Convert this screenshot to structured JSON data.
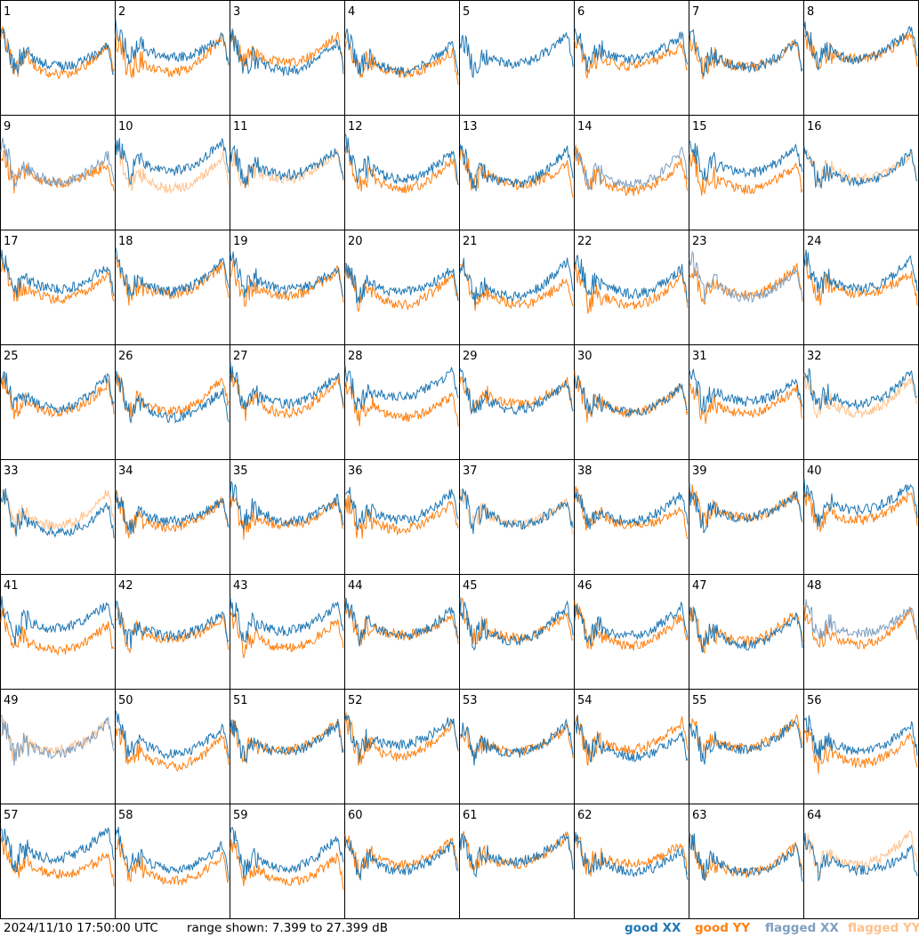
{
  "chart_data": {
    "type": "line",
    "layout": "small-multiples",
    "rows": 8,
    "cols": 8,
    "panel_labels": [
      "1",
      "2",
      "3",
      "4",
      "5",
      "6",
      "7",
      "8",
      "9",
      "10",
      "11",
      "12",
      "13",
      "14",
      "15",
      "16",
      "17",
      "18",
      "19",
      "20",
      "21",
      "22",
      "23",
      "24",
      "25",
      "26",
      "27",
      "28",
      "29",
      "30",
      "31",
      "32",
      "33",
      "34",
      "35",
      "36",
      "37",
      "38",
      "39",
      "40",
      "41",
      "42",
      "43",
      "44",
      "45",
      "46",
      "47",
      "48",
      "49",
      "50",
      "51",
      "52",
      "53",
      "54",
      "55",
      "56",
      "57",
      "58",
      "59",
      "60",
      "61",
      "62",
      "63",
      "64"
    ],
    "y_range_db": [
      7.399,
      27.399
    ],
    "legend": [
      {
        "label": "good XX",
        "color": "#1f77b4"
      },
      {
        "label": "good YY",
        "color": "#ff7f0e"
      },
      {
        "label": "flagged XX",
        "color": "#7f9fbf"
      },
      {
        "label": "flagged YY",
        "color": "#ffc08a"
      }
    ],
    "flags": {
      "1": [
        "good",
        "good"
      ],
      "2": [
        "good",
        "good"
      ],
      "3": [
        "good",
        "good"
      ],
      "4": [
        "good",
        "good"
      ],
      "5": [
        "good",
        "none"
      ],
      "6": [
        "good",
        "good"
      ],
      "7": [
        "good",
        "good"
      ],
      "8": [
        "good",
        "good"
      ],
      "9": [
        "flagged",
        "good"
      ],
      "10": [
        "good",
        "flagged"
      ],
      "11": [
        "good",
        "flagged"
      ],
      "12": [
        "good",
        "good"
      ],
      "13": [
        "good",
        "good"
      ],
      "14": [
        "flagged",
        "good"
      ],
      "15": [
        "good",
        "good"
      ],
      "16": [
        "good",
        "flagged"
      ],
      "17": [
        "good",
        "good"
      ],
      "18": [
        "good",
        "good"
      ],
      "19": [
        "good",
        "good"
      ],
      "20": [
        "good",
        "good"
      ],
      "21": [
        "good",
        "good"
      ],
      "22": [
        "good",
        "good"
      ],
      "23": [
        "flagged",
        "good"
      ],
      "24": [
        "good",
        "good"
      ],
      "25": [
        "good",
        "good"
      ],
      "26": [
        "good",
        "good"
      ],
      "27": [
        "good",
        "good"
      ],
      "28": [
        "good",
        "good"
      ],
      "29": [
        "good",
        "good"
      ],
      "30": [
        "good",
        "good"
      ],
      "31": [
        "good",
        "good"
      ],
      "32": [
        "good",
        "flagged"
      ],
      "33": [
        "good",
        "flagged"
      ],
      "34": [
        "good",
        "good"
      ],
      "35": [
        "good",
        "good"
      ],
      "36": [
        "good",
        "good"
      ],
      "37": [
        "good",
        "flagged"
      ],
      "38": [
        "good",
        "good"
      ],
      "39": [
        "good",
        "good"
      ],
      "40": [
        "good",
        "good"
      ],
      "41": [
        "good",
        "good"
      ],
      "42": [
        "good",
        "good"
      ],
      "43": [
        "good",
        "good"
      ],
      "44": [
        "good",
        "good"
      ],
      "45": [
        "good",
        "good"
      ],
      "46": [
        "good",
        "good"
      ],
      "47": [
        "good",
        "good"
      ],
      "48": [
        "flagged",
        "good"
      ],
      "49": [
        "flagged",
        "flagged"
      ],
      "50": [
        "good",
        "good"
      ],
      "51": [
        "good",
        "good"
      ],
      "52": [
        "good",
        "good"
      ],
      "53": [
        "good",
        "good"
      ],
      "54": [
        "good",
        "good"
      ],
      "55": [
        "good",
        "good"
      ],
      "56": [
        "good",
        "good"
      ],
      "57": [
        "good",
        "good"
      ],
      "58": [
        "good",
        "good"
      ],
      "59": [
        "good",
        "good"
      ],
      "60": [
        "good",
        "good"
      ],
      "61": [
        "good",
        "good"
      ],
      "62": [
        "good",
        "good"
      ],
      "63": [
        "good",
        "good"
      ],
      "64": [
        "good",
        "flagged"
      ]
    }
  },
  "footer": {
    "timestamp": "2024/11/10 17:50:00 UTC",
    "range_text": "range shown: 7.399 to 27.399 dB"
  }
}
